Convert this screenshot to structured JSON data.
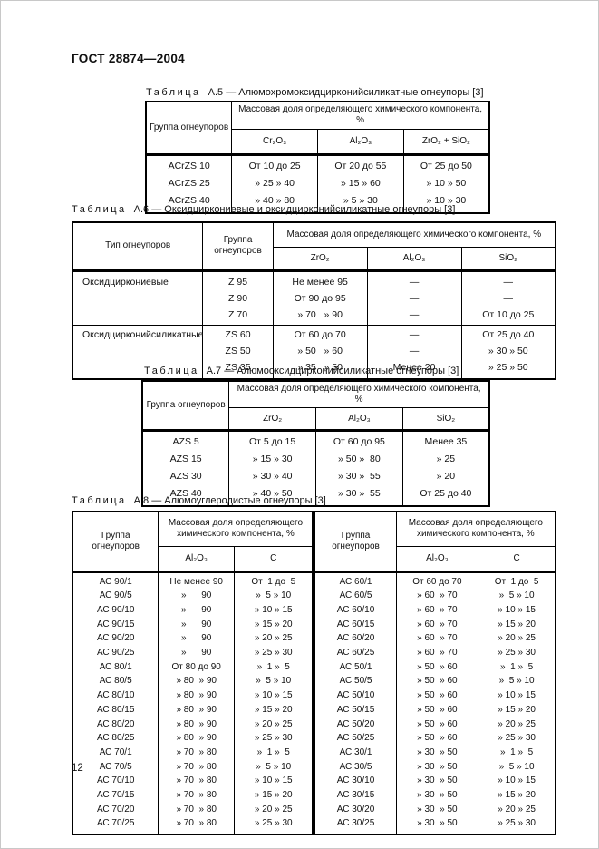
{
  "doc": {
    "number": "ГОСТ 28874—2004",
    "page_number": "12"
  },
  "table_a5": {
    "title": {
      "label": "Таблица",
      "rest": "А.5 — Алюмохромоксидцирконийсиликатные огнеупоры [3]"
    },
    "header": {
      "group": "Группа огнеупоров",
      "mass": "Массовая доля определяющего химического компонента, %",
      "cols": [
        "Cr₂O₃",
        "Al₂O₃",
        "ZrO₂ + SiO₂"
      ]
    },
    "rows": [
      {
        "c": [
          "ACrZS 10",
          "От 10 до 25",
          "От 20 до 55",
          "От 25 до 50"
        ]
      },
      {
        "c": [
          "ACrZS 25",
          "» 25 » 40",
          "» 15 » 60",
          "» 10 » 50"
        ]
      },
      {
        "c": [
          "ACrZS 40",
          "» 40 » 80",
          "» 5 » 30",
          "» 10 » 30"
        ]
      }
    ]
  },
  "table_a6": {
    "title": {
      "label": "Таблица",
      "rest": "А.6 — Оксидциркониевые и оксидцирконийсиликатные огнеупоры [3]"
    },
    "header": {
      "type": "Тип огнеупоров",
      "group": "Группа огнеупоров",
      "mass": "Массовая доля определяющего химического компонента, %",
      "cols": [
        "ZrO₂",
        "Al₂O₃",
        "SiO₂"
      ]
    },
    "rows": [
      {
        "c": [
          "Оксидциркониевые",
          "Z 95",
          "Не менее 95",
          "—",
          "—"
        ]
      },
      {
        "c": [
          "",
          "Z 90",
          "От 90 до 95",
          "—",
          "—"
        ]
      },
      {
        "c": [
          "",
          "Z 70",
          "» 70   » 90",
          "—",
          "От 10 до 25"
        ],
        "cls": "pad-b"
      },
      {
        "c": [
          "Оксидцирконийсиликатные",
          "ZS 60",
          "От 60 до 70",
          "—",
          "От 25 до 40"
        ],
        "cls": "sep-top"
      },
      {
        "c": [
          "",
          "ZS 50",
          "» 50   » 60",
          "—",
          "» 30 » 50"
        ]
      },
      {
        "c": [
          "",
          "ZS 35",
          "» 35   » 50",
          "Менее 20",
          "» 25 » 50"
        ]
      }
    ]
  },
  "table_a7": {
    "title": {
      "label": "Таблица",
      "rest": "А.7 — Алюмооксидцирконийсиликатные огнеупоры [3]"
    },
    "header": {
      "group": "Группа огнеупоров",
      "mass": "Массовая доля определяющего химического компонента, %",
      "cols": [
        "ZrO₂",
        "Al₂O₃",
        "SiO₂"
      ]
    },
    "rows": [
      {
        "c": [
          "AZS 5",
          "От 5 до 15",
          "От 60 до 95",
          "Менее 35"
        ]
      },
      {
        "c": [
          "AZS 15",
          "» 15 » 30",
          "» 50 »  80",
          "» 25"
        ]
      },
      {
        "c": [
          "AZS 30",
          "» 30 » 40",
          "» 30 »  55",
          "» 20"
        ]
      },
      {
        "c": [
          "AZS 40",
          "» 40 » 50",
          "» 30 »  55",
          "От 25 до 40"
        ]
      }
    ]
  },
  "table_a8": {
    "title": {
      "label": "Таблица",
      "rest": "А.8 — Алюмоуглеродистые огнеупоры [3]"
    },
    "header_left": {
      "group": "Группа огнеупоров",
      "mass": "Массовая доля определяющего химического компонента, %",
      "c1": "Al₂O₃",
      "c2": "С"
    },
    "header_right": {
      "group": "Группа огнеупоров",
      "mass": "Массовая доля определяющего химического компонента, %",
      "c1": "Al₂O₃",
      "c2": "С"
    },
    "rows": [
      {
        "c": [
          "АС 90/1",
          "Не менее 90",
          "От  1 до  5",
          "АС 60/1",
          "От 60 до 70",
          "От  1 до  5"
        ]
      },
      {
        "c": [
          "АС 90/5",
          "»      90",
          "»  5 » 10",
          "АС 60/5",
          "» 60  » 70",
          "»  5 » 10"
        ]
      },
      {
        "c": [
          "АС 90/10",
          "»      90",
          "» 10 » 15",
          "АС 60/10",
          "» 60  » 70",
          "» 10 » 15"
        ]
      },
      {
        "c": [
          "АС 90/15",
          "»      90",
          "» 15 » 20",
          "АС 60/15",
          "» 60  » 70",
          "» 15 » 20"
        ]
      },
      {
        "c": [
          "АС 90/20",
          "»      90",
          "» 20 » 25",
          "АС 60/20",
          "» 60  » 70",
          "» 20 » 25"
        ]
      },
      {
        "c": [
          "АС 90/25",
          "»      90",
          "» 25 » 30",
          "АС 60/25",
          "» 60  » 70",
          "» 25 » 30"
        ]
      },
      {
        "c": [
          "АС 80/1",
          "От 80 до 90",
          "»  1 »  5",
          "АС 50/1",
          "» 50  » 60",
          "»  1 »  5"
        ]
      },
      {
        "c": [
          "АС 80/5",
          "» 80  » 90",
          "»  5 » 10",
          "АС 50/5",
          "» 50  » 60",
          "»  5 » 10"
        ]
      },
      {
        "c": [
          "АС 80/10",
          "» 80  » 90",
          "» 10 » 15",
          "АС 50/10",
          "» 50  » 60",
          "» 10 » 15"
        ]
      },
      {
        "c": [
          "АС 80/15",
          "» 80  » 90",
          "» 15 » 20",
          "АС 50/15",
          "» 50  » 60",
          "» 15 » 20"
        ]
      },
      {
        "c": [
          "АС 80/20",
          "» 80  » 90",
          "» 20 » 25",
          "АС 50/20",
          "» 50  » 60",
          "» 20 » 25"
        ]
      },
      {
        "c": [
          "АС 80/25",
          "» 80  » 90",
          "» 25 » 30",
          "АС 50/25",
          "» 50  » 60",
          "» 25 » 30"
        ]
      },
      {
        "c": [
          "АС 70/1",
          "» 70  » 80",
          "»  1 »  5",
          "АС 30/1",
          "» 30  » 50",
          "»  1 »  5"
        ]
      },
      {
        "c": [
          "АС 70/5",
          "» 70  » 80",
          "»  5 » 10",
          "АС 30/5",
          "» 30  » 50",
          "»  5 » 10"
        ]
      },
      {
        "c": [
          "АС 70/10",
          "» 70  » 80",
          "» 10 » 15",
          "АС 30/10",
          "» 30  » 50",
          "» 10 » 15"
        ]
      },
      {
        "c": [
          "АС 70/15",
          "» 70  » 80",
          "» 15 » 20",
          "АС 30/15",
          "» 30  » 50",
          "» 15 » 20"
        ]
      },
      {
        "c": [
          "АС 70/20",
          "» 70  » 80",
          "» 20 » 25",
          "АС 30/20",
          "» 30  » 50",
          "» 20 » 25"
        ]
      },
      {
        "c": [
          "АС 70/25",
          "» 70  » 80",
          "» 25 » 30",
          "АС 30/25",
          "» 30  » 50",
          "» 25 » 30"
        ]
      }
    ]
  }
}
